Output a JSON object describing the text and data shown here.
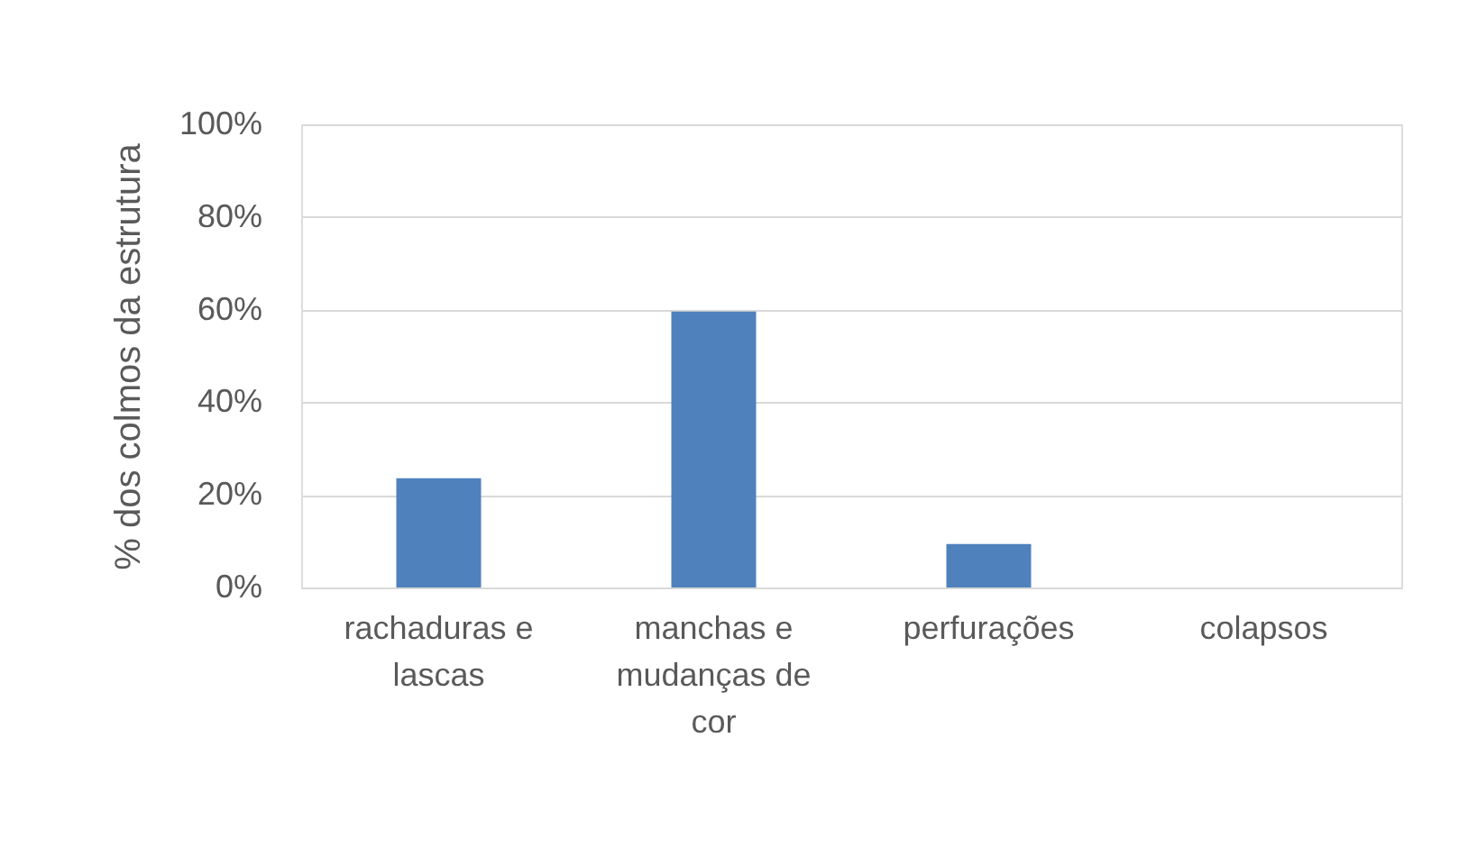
{
  "chart_data": {
    "type": "bar",
    "ylabel": "% dos colmos da estrutura",
    "categories": [
      "rachaduras e lascas",
      "manchas e mudanças de cor",
      "perfurações",
      "colapsos"
    ],
    "values": [
      23.6,
      59.6,
      9.4,
      0
    ],
    "color": "#4f81bd",
    "ylim": [
      0,
      100
    ],
    "yticks": [
      {
        "value": 0,
        "label": "0%"
      },
      {
        "value": 20,
        "label": "20%"
      },
      {
        "value": 40,
        "label": "40%"
      },
      {
        "value": 60,
        "label": "60%"
      },
      {
        "value": 80,
        "label": "80%"
      },
      {
        "value": 100,
        "label": "100%"
      }
    ],
    "grid": "y"
  }
}
